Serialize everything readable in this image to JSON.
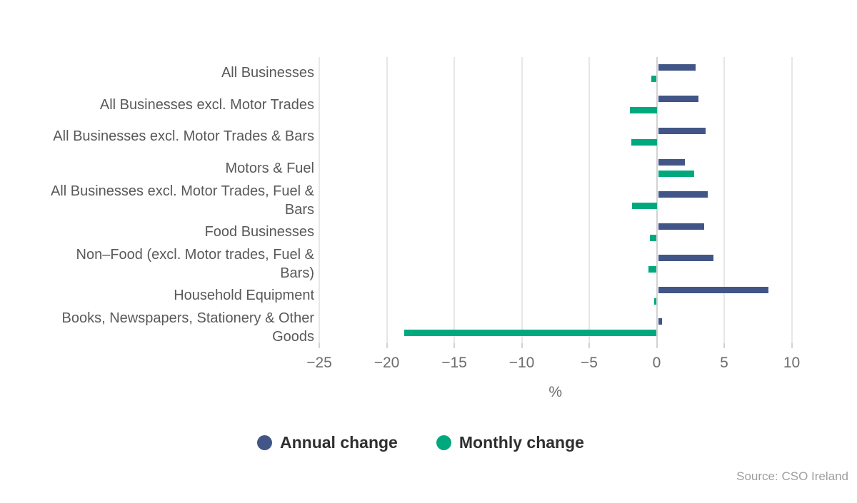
{
  "chart_data": {
    "type": "bar",
    "orientation": "horizontal",
    "title": "",
    "xlabel": "%",
    "ylabel": "",
    "xlim": [
      -25,
      14.1
    ],
    "xticks": [
      -25,
      -20,
      -15,
      -10,
      -5,
      0,
      5,
      10
    ],
    "xtick_labels": [
      "−25",
      "−20",
      "−15",
      "−10",
      "−5",
      "0",
      "5",
      "10"
    ],
    "grid": true,
    "legend_position": "bottom",
    "categories": [
      "All Businesses",
      "All Businesses excl. Motor Trades",
      "All Businesses excl. Motor Trades & Bars",
      "Motors & Fuel",
      "All Businesses excl. Motor Trades, Fuel & Bars",
      "Food Businesses",
      "Non–Food (excl. Motor trades, Fuel & Bars)",
      "Household Equipment",
      "Books, Newspapers, Stationery & Other Goods"
    ],
    "series": [
      {
        "name": "Annual change",
        "color": "#415686",
        "values": [
          2.9,
          3.1,
          3.6,
          2.1,
          3.8,
          3.5,
          4.2,
          8.3,
          0.4
        ]
      },
      {
        "name": "Monthly change",
        "color": "#00a97d",
        "values": [
          -0.4,
          -2.0,
          -1.9,
          2.8,
          -1.8,
          -0.5,
          -0.6,
          -0.2,
          -18.7
        ]
      }
    ]
  },
  "source": {
    "text": "Source: CSO Ireland"
  }
}
